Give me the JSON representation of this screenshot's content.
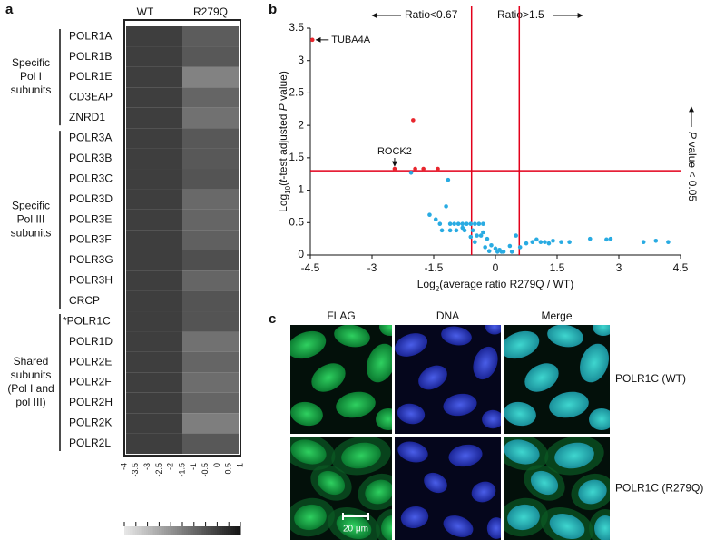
{
  "chart_data": [
    {
      "type": "heatmap",
      "panel_label": "a",
      "columns": [
        "WT",
        "R279Q"
      ],
      "groups": [
        {
          "label_lines": [
            "Specific",
            "Pol I",
            "subunits"
          ],
          "rows": [
            {
              "name": "POLR1A",
              "values": [
                0,
                -0.7
              ]
            },
            {
              "name": "POLR1B",
              "values": [
                0,
                -0.6
              ]
            },
            {
              "name": "POLR1E",
              "values": [
                0,
                -1.6
              ]
            },
            {
              "name": "CD3EAP",
              "values": [
                0,
                -0.9
              ]
            },
            {
              "name": "ZNRD1",
              "values": [
                0,
                -1.2
              ]
            }
          ]
        },
        {
          "label_lines": [
            "Specific",
            "Pol III",
            "subunits"
          ],
          "rows": [
            {
              "name": "POLR3A",
              "values": [
                0,
                -0.6
              ]
            },
            {
              "name": "POLR3B",
              "values": [
                0,
                -0.6
              ]
            },
            {
              "name": "POLR3C",
              "values": [
                0,
                -0.5
              ]
            },
            {
              "name": "POLR3D",
              "values": [
                0,
                -1.0
              ]
            },
            {
              "name": "POLR3E",
              "values": [
                0,
                -0.9
              ]
            },
            {
              "name": "POLR3F",
              "values": [
                0,
                -0.8
              ]
            },
            {
              "name": "POLR3G",
              "values": [
                0,
                -0.4
              ]
            },
            {
              "name": "POLR3H",
              "values": [
                0,
                -0.9
              ]
            },
            {
              "name": "CRCP",
              "values": [
                0,
                -0.5
              ]
            }
          ]
        },
        {
          "label_lines": [
            "Shared",
            "subunits",
            "(Pol I and",
            "pol III)"
          ],
          "rows": [
            {
              "name": "*POLR1C",
              "values": [
                0,
                -0.5
              ]
            },
            {
              "name": "POLR1D",
              "values": [
                0,
                -1.2
              ]
            },
            {
              "name": "POLR2E",
              "values": [
                0,
                -0.9
              ]
            },
            {
              "name": "POLR2F",
              "values": [
                0,
                -1.1
              ]
            },
            {
              "name": "POLR2H",
              "values": [
                0,
                -0.9
              ]
            },
            {
              "name": "POLR2K",
              "values": [
                0,
                -1.5
              ]
            },
            {
              "name": "POLR2L",
              "values": [
                0,
                -0.6
              ]
            }
          ]
        }
      ],
      "colorbar_lim": [
        -4,
        1
      ],
      "colorbar_ticks": [
        -4,
        -3.5,
        -3,
        -2.5,
        -2,
        -1.5,
        -1,
        -0.5,
        0,
        0.5,
        1
      ]
    },
    {
      "type": "scatter",
      "panel_label": "b",
      "xlabel_parts": [
        "Log",
        "2",
        "(average ratio R279Q / WT)"
      ],
      "ylabel_parts": [
        "Log",
        "10",
        "(",
        "t",
        "-test adjusted ",
        "P",
        " value)"
      ],
      "xlim": [
        -4.5,
        4.5
      ],
      "xticks": [
        -4.5,
        -3,
        -1.5,
        0,
        1.5,
        3,
        4.5
      ],
      "ylim": [
        0,
        3.5
      ],
      "yticks": [
        0,
        0.5,
        1,
        1.5,
        2,
        2.5,
        3,
        3.5
      ],
      "thresholds": {
        "x": [
          -0.58,
          0.58
        ],
        "y": 1.3,
        "color": "#e3001b"
      },
      "ratio_labels": [
        "Ratio<0.67",
        "Ratio>1.5"
      ],
      "significance_parts": [
        "P",
        " value < 0.05"
      ],
      "series": [
        {
          "color": "#e8262d",
          "x": [
            -4.45,
            -2.0,
            -2.45,
            -1.95,
            -1.75,
            -1.4
          ],
          "values": [
            3.32,
            2.08,
            1.33,
            1.33,
            1.33,
            1.33
          ],
          "labels": [
            "TUBA4A",
            null,
            "ROCK2",
            null,
            null,
            null
          ]
        },
        {
          "color": "#29abe2",
          "x": [
            -2.05,
            -1.15,
            -1.2,
            -1.6,
            -1.45,
            -1.35,
            -1.1,
            -1.0,
            -0.9,
            -0.8,
            -0.7,
            -0.6,
            -0.5,
            -0.4,
            -0.3,
            -1.3,
            -1.1,
            -0.95,
            -0.75,
            -0.55,
            -0.45,
            -0.35,
            -0.2,
            -0.1,
            0.0,
            0.1,
            0.2,
            -0.6,
            -0.5,
            -0.25,
            -0.15,
            0.05,
            0.15,
            0.35,
            0.6,
            0.75,
            0.9,
            1.0,
            1.1,
            1.2,
            1.3,
            1.4,
            1.6,
            1.8,
            2.3,
            2.7,
            2.8,
            3.6,
            3.9,
            4.2,
            -0.8,
            -0.3,
            0.4,
            0.5
          ],
          "values": [
            1.27,
            1.16,
            0.75,
            0.62,
            0.55,
            0.48,
            0.48,
            0.48,
            0.48,
            0.48,
            0.48,
            0.48,
            0.48,
            0.48,
            0.48,
            0.38,
            0.38,
            0.38,
            0.38,
            0.38,
            0.3,
            0.3,
            0.25,
            0.15,
            0.1,
            0.08,
            0.05,
            0.28,
            0.2,
            0.12,
            0.06,
            0.05,
            0.05,
            0.14,
            0.12,
            0.18,
            0.2,
            0.24,
            0.2,
            0.2,
            0.18,
            0.22,
            0.2,
            0.2,
            0.25,
            0.24,
            0.25,
            0.2,
            0.22,
            0.2,
            0.42,
            0.35,
            0.05,
            0.3
          ]
        }
      ]
    }
  ],
  "panel_c": {
    "panel_label": "c",
    "columns": [
      "FLAG",
      "DNA",
      "Merge"
    ],
    "rows": [
      "POLR1C (WT)",
      "POLR1C (R279Q)"
    ],
    "scale_bar": "20 μm"
  }
}
